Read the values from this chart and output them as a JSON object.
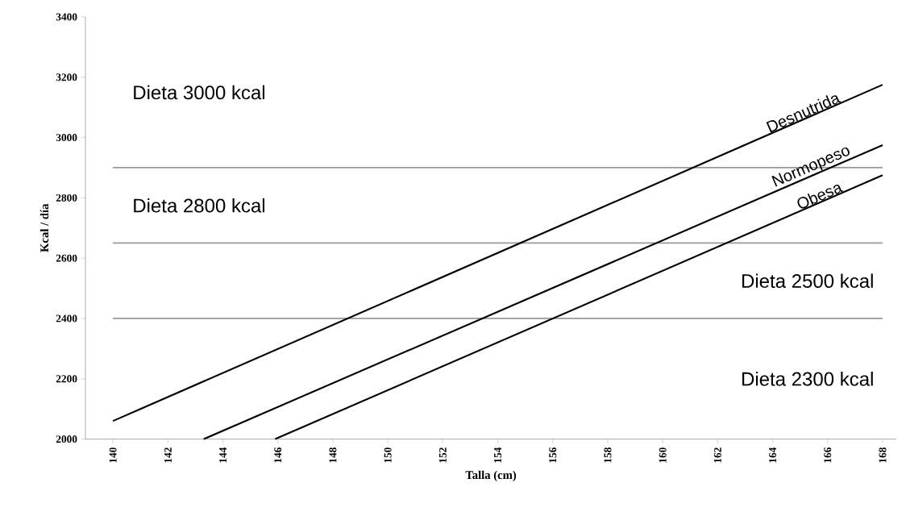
{
  "chart_data": {
    "type": "line",
    "xlabel": "Talla (cm)",
    "ylabel": "Kcal / día",
    "xlim": [
      139,
      168.5
    ],
    "ylim": [
      2000,
      3400
    ],
    "xticks": [
      140,
      142,
      144,
      146,
      148,
      150,
      152,
      154,
      156,
      158,
      160,
      162,
      164,
      166,
      168
    ],
    "yticks": [
      2000,
      2200,
      2400,
      2600,
      2800,
      3000,
      3200,
      3400
    ],
    "line_style": "solid",
    "series": [
      {
        "name": "Desnutrida",
        "color": "#000000",
        "x": [
          140,
          168
        ],
        "values": [
          2060,
          3175
        ]
      },
      {
        "name": "Normopeso",
        "color": "#000000",
        "x": [
          143.3,
          168
        ],
        "values": [
          2000,
          2975
        ]
      },
      {
        "name": "Obesa",
        "color": "#000000",
        "x": [
          145.9,
          168
        ],
        "values": [
          2000,
          2875
        ]
      }
    ],
    "ref_lines": [
      {
        "axis": "y",
        "value": 2900,
        "color": "#999999"
      },
      {
        "axis": "y",
        "value": 2650,
        "color": "#999999"
      },
      {
        "axis": "y",
        "value": 2400,
        "color": "#999999"
      }
    ],
    "annotations": [
      "Dieta 3000 kcal",
      "Dieta 2800 kcal",
      "Dieta 2500 kcal",
      "Dieta 2300 kcal"
    ]
  }
}
